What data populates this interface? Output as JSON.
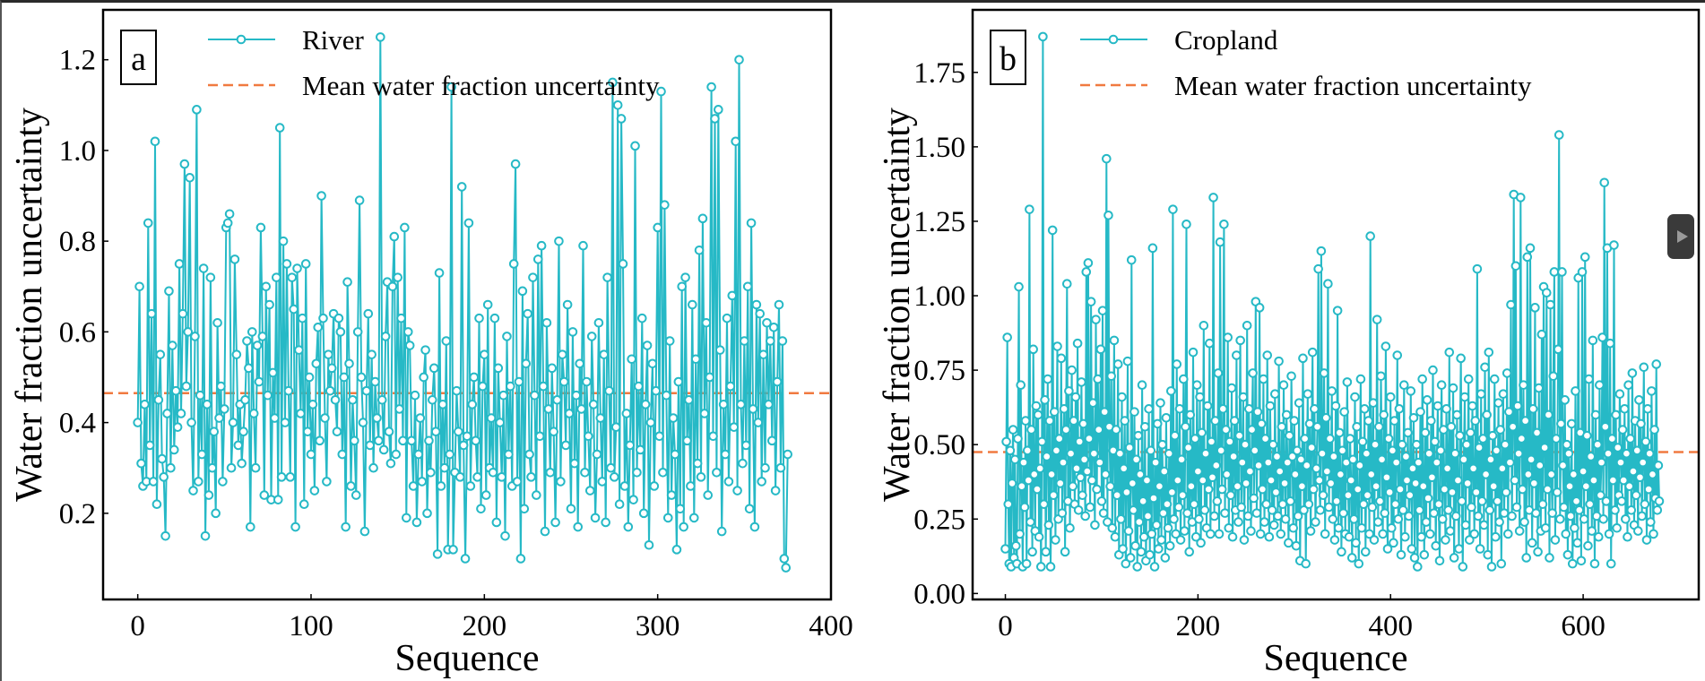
{
  "colors": {
    "series": "#26b9c6",
    "mean": "#f07a40"
  },
  "chart_data": [
    {
      "type": "line",
      "panel_label": "a",
      "xlabel": "Sequence",
      "ylabel": "Water fraction uncertainty",
      "xlim": [
        -20,
        400
      ],
      "ylim": [
        0.01,
        1.31
      ],
      "xticks": [
        "0",
        "100",
        "200",
        "300",
        "400"
      ],
      "yticks": [
        "0.2",
        "0.4",
        "0.6",
        "0.8",
        "1.0",
        "1.2"
      ],
      "legend_position": "top",
      "grid": false,
      "series_name": "River",
      "mean_name": "Mean water fraction uncertainty",
      "mean_value": 0.465,
      "values": [
        0.4,
        0.7,
        0.31,
        0.26,
        0.44,
        0.27,
        0.84,
        0.35,
        0.64,
        0.27,
        1.02,
        0.22,
        0.45,
        0.55,
        0.32,
        0.28,
        0.15,
        0.42,
        0.69,
        0.3,
        0.57,
        0.34,
        0.47,
        0.39,
        0.75,
        0.42,
        0.64,
        0.97,
        0.48,
        0.6,
        0.94,
        0.4,
        0.25,
        0.59,
        1.09,
        0.27,
        0.46,
        0.33,
        0.74,
        0.15,
        0.44,
        0.24,
        0.72,
        0.3,
        0.38,
        0.2,
        0.62,
        0.41,
        0.48,
        0.27,
        0.43,
        0.83,
        0.84,
        0.86,
        0.3,
        0.4,
        0.76,
        0.55,
        0.35,
        0.44,
        0.31,
        0.38,
        0.45,
        0.58,
        0.52,
        0.17,
        0.6,
        0.42,
        0.3,
        0.57,
        0.49,
        0.83,
        0.59,
        0.24,
        0.7,
        0.46,
        0.66,
        0.23,
        0.51,
        0.41,
        0.72,
        0.23,
        1.05,
        0.28,
        0.8,
        0.4,
        0.75,
        0.47,
        0.28,
        0.72,
        0.65,
        0.17,
        0.74,
        0.56,
        0.42,
        0.63,
        0.22,
        0.75,
        0.38,
        0.5,
        0.33,
        0.44,
        0.25,
        0.53,
        0.61,
        0.36,
        0.9,
        0.63,
        0.41,
        0.27,
        0.55,
        0.47,
        0.52,
        0.64,
        0.45,
        0.38,
        0.63,
        0.6,
        0.33,
        0.5,
        0.17,
        0.71,
        0.53,
        0.26,
        0.45,
        0.36,
        0.24,
        0.6,
        0.89,
        0.5,
        0.4,
        0.16,
        0.47,
        0.64,
        0.35,
        0.55,
        0.3,
        0.49,
        0.41,
        0.36,
        1.25,
        0.45,
        0.34,
        0.59,
        0.71,
        0.38,
        0.31,
        0.7,
        0.81,
        0.33,
        0.72,
        0.43,
        0.63,
        0.36,
        0.83,
        0.19,
        0.6,
        0.57,
        0.36,
        0.26,
        0.46,
        0.18,
        0.33,
        0.41,
        0.27,
        0.5,
        0.56,
        0.2,
        0.36,
        0.29,
        0.45,
        0.52,
        0.38,
        0.11,
        0.73,
        0.26,
        0.44,
        0.3,
        0.58,
        0.12,
        0.33,
        1.14,
        0.12,
        0.29,
        0.47,
        0.38,
        0.28,
        0.92,
        0.35,
        0.1,
        0.37,
        0.84,
        0.26,
        0.44,
        0.5,
        0.36,
        0.28,
        0.63,
        0.21,
        0.48,
        0.55,
        0.24,
        0.66,
        0.3,
        0.41,
        0.29,
        0.63,
        0.18,
        0.52,
        0.4,
        0.28,
        0.46,
        0.15,
        0.59,
        0.33,
        0.48,
        0.26,
        0.75,
        0.97,
        0.27,
        0.49,
        0.1,
        0.69,
        0.21,
        0.53,
        0.64,
        0.33,
        0.28,
        0.72,
        0.46,
        0.24,
        0.76,
        0.37,
        0.79,
        0.48,
        0.16,
        0.62,
        0.43,
        0.29,
        0.52,
        0.38,
        0.18,
        0.45,
        0.8,
        0.27,
        0.55,
        0.49,
        0.35,
        0.66,
        0.42,
        0.21,
        0.6,
        0.31,
        0.46,
        0.17,
        0.53,
        0.43,
        0.79,
        0.29,
        0.49,
        0.37,
        0.25,
        0.59,
        0.44,
        0.19,
        0.33,
        0.62,
        0.41,
        0.27,
        0.55,
        0.18,
        0.72,
        0.47,
        0.3,
        1.15,
        0.28,
        0.39,
        1.1,
        0.22,
        1.07,
        0.75,
        0.26,
        0.42,
        0.17,
        0.35,
        0.54,
        0.23,
        1.01,
        0.29,
        0.48,
        0.34,
        0.63,
        0.2,
        0.44,
        0.57,
        0.13,
        0.4,
        0.53,
        0.26,
        0.47,
        0.83,
        0.37,
        1.13,
        0.29,
        0.88,
        0.46,
        0.19,
        0.58,
        0.24,
        0.41,
        0.33,
        0.12,
        0.49,
        0.21,
        0.7,
        0.17,
        0.72,
        0.36,
        0.45,
        0.26,
        0.66,
        0.19,
        0.54,
        0.31,
        0.78,
        0.28,
        0.85,
        0.42,
        0.62,
        0.24,
        0.5,
        1.14,
        0.37,
        1.07,
        0.29,
        1.09,
        0.56,
        0.16,
        0.44,
        0.33,
        0.63,
        0.27,
        0.48,
        0.68,
        0.39,
        1.02,
        0.25,
        1.2,
        0.44,
        0.31,
        0.58,
        0.35,
        0.7,
        0.21,
        0.84,
        0.43,
        0.17,
        0.66,
        0.4,
        0.64,
        0.27,
        0.55,
        0.3,
        0.62,
        0.44,
        0.58,
        0.36,
        0.61,
        0.25,
        0.49,
        0.66,
        0.3,
        0.58,
        0.1,
        0.08,
        0.33
      ]
    },
    {
      "type": "line",
      "panel_label": "b",
      "xlabel": "Sequence",
      "ylabel": "Water fraction uncertainty",
      "xlim": [
        -34,
        720
      ],
      "ylim": [
        -0.02,
        1.96
      ],
      "xticks": [
        "0",
        "200",
        "400",
        "600"
      ],
      "yticks": [
        "0.00",
        "0.25",
        "0.50",
        "0.75",
        "1.00",
        "1.25",
        "1.50",
        "1.75"
      ],
      "legend_position": "top",
      "grid": false,
      "series_name": "Cropland",
      "mean_name": "Mean water fraction uncertainty",
      "mean_value": 0.475,
      "values": [
        0.15,
        0.51,
        0.86,
        0.3,
        0.1,
        0.48,
        0.09,
        0.37,
        0.55,
        0.12,
        0.45,
        0.16,
        0.1,
        0.52,
        1.03,
        0.2,
        0.7,
        0.36,
        0.09,
        0.44,
        0.29,
        0.58,
        0.1,
        0.48,
        0.38,
        1.29,
        0.24,
        0.55,
        0.14,
        0.82,
        0.4,
        0.21,
        0.63,
        0.35,
        0.6,
        0.19,
        0.42,
        0.09,
        0.51,
        1.87,
        0.3,
        0.65,
        0.14,
        0.46,
        0.72,
        0.23,
        0.58,
        0.09,
        0.4,
        1.22,
        0.33,
        0.61,
        0.18,
        0.48,
        0.83,
        0.25,
        0.52,
        0.37,
        0.79,
        0.27,
        0.44,
        0.62,
        0.14,
        0.55,
        1.04,
        0.31,
        0.68,
        0.22,
        0.47,
        0.75,
        0.36,
        0.58,
        0.3,
        0.66,
        0.42,
        0.84,
        0.28,
        0.51,
        0.39,
        0.71,
        0.33,
        0.57,
        0.45,
        0.26,
        1.08,
        0.41,
        1.11,
        0.52,
        0.29,
        0.98,
        0.38,
        0.64,
        0.47,
        0.23,
        0.92,
        0.35,
        0.72,
        0.55,
        0.44,
        0.82,
        0.31,
        0.95,
        0.27,
        0.61,
        0.4,
        1.46,
        0.24,
        1.27,
        0.56,
        0.36,
        0.73,
        0.22,
        0.48,
        0.85,
        0.19,
        0.55,
        0.33,
        0.77,
        0.13,
        0.47,
        0.25,
        0.66,
        0.15,
        0.42,
        0.58,
        0.1,
        0.34,
        0.78,
        0.21,
        0.49,
        0.12,
        1.12,
        0.37,
        0.28,
        0.61,
        0.16,
        0.45,
        0.09,
        0.53,
        0.24,
        0.4,
        0.14,
        0.7,
        0.31,
        0.19,
        0.56,
        0.11,
        0.38,
        0.26,
        0.62,
        0.13,
        0.48,
        0.2,
        1.16,
        0.32,
        0.09,
        0.44,
        0.23,
        0.57,
        0.15,
        0.36,
        0.64,
        0.18,
        0.5,
        0.27,
        0.41,
        0.12,
        0.59,
        0.3,
        0.22,
        0.47,
        0.16,
        0.68,
        0.34,
        1.29,
        0.25,
        0.53,
        0.2,
        0.77,
        0.38,
        0.29,
        0.62,
        0.18,
        0.45,
        0.33,
        0.72,
        0.21,
        0.56,
        1.24,
        0.27,
        0.49,
        0.14,
        0.6,
        0.36,
        0.24,
        0.81,
        0.3,
        0.52,
        0.19,
        0.7,
        0.41,
        0.25,
        0.66,
        0.17,
        0.54,
        0.38,
        0.9,
        0.28,
        0.47,
        0.22,
        0.63,
        0.35,
        0.84,
        0.2,
        0.51,
        0.39,
        1.33,
        0.26,
        0.58,
        0.43,
        0.31,
        0.74,
        0.2,
        1.18,
        0.48,
        0.35,
        0.62,
        1.24,
        0.27,
        0.55,
        0.4,
        0.86,
        0.22,
        0.51,
        0.33,
        0.69,
        0.19,
        0.46,
        0.58,
        0.28,
        0.8,
        0.36,
        0.24,
        0.53,
        0.85,
        0.29,
        0.44,
        0.66,
        0.18,
        0.5,
        0.37,
        0.9,
        0.26,
        0.62,
        0.41,
        0.21,
        0.55,
        0.74,
        0.32,
        0.48,
        0.98,
        0.27,
        0.61,
        0.43,
        0.96,
        0.2,
        0.57,
        0.35,
        0.72,
        0.24,
        0.52,
        0.3,
        0.8,
        0.44,
        0.19,
        0.63,
        0.38,
        0.28,
        0.5,
        0.23,
        0.67,
        0.34,
        0.46,
        0.26,
        0.78,
        0.41,
        0.2,
        0.56,
        0.3,
        0.7,
        0.37,
        0.25,
        0.6,
        0.44,
        0.17,
        0.53,
        0.31,
        0.73,
        0.46,
        0.22,
        0.58,
        0.4,
        0.16,
        0.48,
        0.26,
        0.64,
        0.11,
        0.45,
        0.36,
        0.79,
        0.28,
        0.52,
        0.1,
        0.43,
        0.67,
        0.3,
        0.57,
        0.21,
        0.49,
        0.81,
        0.35,
        0.62,
        0.24,
        0.42,
        0.56,
        1.09,
        0.38,
        0.28,
        1.15,
        0.47,
        0.33,
        0.74,
        0.2,
        0.59,
        0.41,
        1.04,
        0.29,
        0.52,
        0.37,
        0.68,
        0.25,
        0.46,
        0.18,
        0.63,
        0.31,
        0.95,
        0.22,
        0.54,
        0.4,
        0.14,
        0.48,
        0.27,
        0.61,
        0.2,
        0.44,
        0.71,
        0.33,
        0.19,
        0.52,
        0.38,
        0.12,
        0.45,
        0.25,
        0.66,
        0.17,
        0.56,
        0.35,
        0.1,
        0.43,
        0.72,
        0.22,
        0.51,
        0.3,
        0.62,
        0.14,
        0.47,
        0.33,
        0.58,
        0.2,
        1.2,
        0.4,
        0.29,
        0.64,
        0.18,
        0.5,
        0.36,
        0.92,
        0.24,
        0.56,
        0.31,
        0.73,
        0.45,
        0.2,
        0.6,
        0.27,
        0.83,
        0.39,
        0.15,
        0.52,
        0.34,
        0.66,
        0.22,
        0.48,
        0.17,
        0.58,
        0.3,
        0.44,
        0.8,
        0.25,
        0.62,
        0.35,
        0.13,
        0.5,
        0.28,
        0.7,
        0.19,
        0.46,
        0.38,
        0.54,
        0.26,
        0.33,
        0.68,
        0.15,
        0.42,
        0.59,
        0.12,
        0.37,
        0.5,
        0.09,
        0.44,
        0.28,
        0.61,
        0.19,
        0.72,
        0.36,
        0.13,
        0.54,
        0.24,
        0.65,
        0.32,
        0.47,
        0.2,
        0.58,
        0.39,
        0.75,
        0.27,
        0.51,
        0.16,
        0.44,
        0.63,
        0.3,
        0.11,
        0.48,
        0.7,
        0.25,
        0.55,
        0.35,
        0.18,
        0.62,
        0.42,
        0.28,
        0.81,
        0.21,
        0.56,
        0.34,
        0.69,
        0.12,
        0.47,
        0.26,
        0.6,
        0.38,
        0.15,
        0.53,
        0.79,
        0.31,
        0.09,
        0.45,
        0.66,
        0.23,
        0.5,
        0.37,
        0.72,
        0.18,
        0.54,
        0.29,
        0.63,
        0.42,
        0.2,
        0.58,
        0.34,
        1.09,
        0.26,
        0.49,
        0.15,
        0.67,
        0.31,
        0.52,
        0.23,
        0.76,
        0.4,
        0.6,
        0.13,
        0.81,
        0.28,
        0.45,
        0.09,
        0.53,
        0.36,
        0.72,
        0.19,
        0.48,
        0.31,
        0.64,
        0.24,
        0.55,
        0.1,
        0.42,
        0.67,
        0.27,
        0.5,
        0.34,
        0.74,
        0.2,
        0.61,
        0.44,
        0.97,
        0.26,
        0.56,
        1.34,
        0.38,
        1.1,
        0.29,
        0.63,
        0.47,
        0.21,
        1.33,
        0.52,
        0.35,
        0.7,
        0.24,
        0.58,
        0.12,
        1.13,
        0.4,
        0.28,
        1.16,
        0.45,
        0.17,
        0.62,
        0.37,
        0.96,
        0.27,
        0.54,
        0.14,
        0.69,
        0.43,
        0.21,
        0.87,
        0.3,
        1.03,
        0.49,
        0.22,
        1.01,
        0.35,
        0.6,
        0.12,
        0.97,
        0.4,
        0.27,
        0.73,
        1.08,
        0.18,
        0.52,
        0.34,
        0.82,
        1.54,
        0.25,
        0.57,
        1.08,
        0.43,
        0.29,
        0.65,
        0.2,
        0.5,
        0.13,
        0.47,
        0.36,
        0.26,
        0.57,
        0.1,
        0.4,
        0.22,
        0.68,
        0.31,
        0.17,
        1.06,
        0.28,
        0.54,
        0.11,
        1.08,
        0.41,
        0.25,
        1.13,
        0.36,
        0.53,
        0.16,
        0.72,
        0.3,
        0.46,
        0.21,
        0.85,
        0.38,
        0.1,
        0.6,
        0.26,
        0.5,
        0.19,
        0.7,
        0.33,
        0.44,
        0.86,
        0.25,
        1.38,
        0.56,
        0.31,
        1.16,
        0.47,
        0.2,
        0.84,
        0.1,
        0.52,
        0.38,
        1.17,
        0.28,
        0.6,
        0.22,
        0.49,
        0.33,
        0.67,
        0.44,
        0.31,
        0.55,
        0.38,
        0.62,
        0.25,
        0.47,
        0.19,
        0.7,
        0.36,
        0.52,
        0.28,
        0.74,
        0.41,
        0.23,
        0.58,
        0.33,
        0.48,
        0.21,
        0.65,
        0.39,
        0.57,
        0.26,
        0.44,
        0.76,
        0.3,
        0.51,
        0.18,
        0.62,
        0.35,
        0.47,
        0.24,
        0.68,
        0.4,
        0.2,
        0.55,
        0.32,
        0.77,
        0.28,
        0.43,
        0.31
      ]
    }
  ]
}
